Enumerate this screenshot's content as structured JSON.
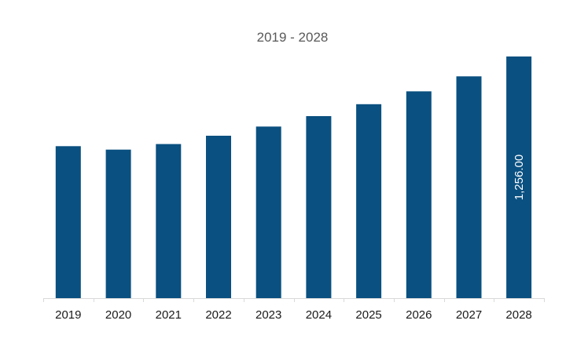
{
  "chart_data": {
    "type": "bar",
    "title": "2019 - 2028",
    "xlabel": "",
    "ylabel": "",
    "categories": [
      "2019",
      "2020",
      "2021",
      "2022",
      "2023",
      "2024",
      "2025",
      "2026",
      "2027",
      "2028"
    ],
    "values": [
      790,
      772,
      801,
      844,
      892,
      946,
      1008,
      1075,
      1153,
      1256
    ],
    "data_labels": [
      "",
      "",
      "",
      "",
      "",
      "",
      "",
      "",
      "",
      "1,256.00"
    ],
    "ylim": [
      0,
      1256
    ],
    "grid": false,
    "legend": "none",
    "bar_color": "#0a5080",
    "axis_color": "#d9d9d9"
  }
}
